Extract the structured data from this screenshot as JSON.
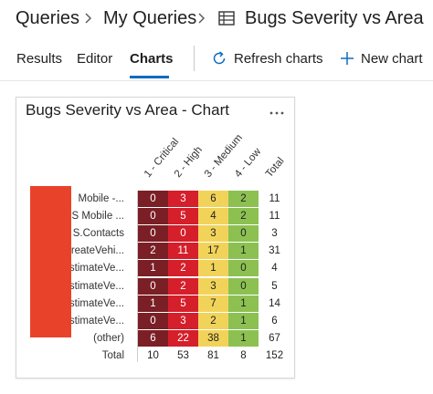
{
  "breadcrumb": {
    "root": "Queries",
    "folder": "My Queries",
    "query": "Bugs Severity vs Area"
  },
  "tabs": [
    {
      "label": "Results",
      "active": false
    },
    {
      "label": "Editor",
      "active": false
    },
    {
      "label": "Charts",
      "active": true
    }
  ],
  "commands": {
    "refresh": "Refresh charts",
    "new_chart": "New chart"
  },
  "colors": {
    "accent": "#0f6cbd",
    "critical": "#7a1f25",
    "high": "#d51f2a",
    "medium": "#f2d35a",
    "low": "#8cc152",
    "redaction": "#e8432a"
  },
  "card": {
    "title": "Bugs Severity vs Area - Chart",
    "more_icon": "ellipsis-icon"
  },
  "pivot": {
    "columns": [
      "1 - Critical",
      "2 - High",
      "3 - Medium",
      "4 - Low",
      "Total"
    ],
    "rows": [
      {
        "label": "Mobile -...",
        "values": [
          "0",
          "3",
          "6",
          "2",
          "11"
        ]
      },
      {
        "label": "S Mobile ...",
        "values": [
          "0",
          "5",
          "4",
          "2",
          "11"
        ]
      },
      {
        "label": "S.Contacts",
        "values": [
          "0",
          "0",
          "3",
          "0",
          "3"
        ]
      },
      {
        "label": "reateVehi...",
        "values": [
          "2",
          "11",
          "17",
          "1",
          "31"
        ]
      },
      {
        "label": "stimateVe...",
        "values": [
          "1",
          "2",
          "1",
          "0",
          "4"
        ]
      },
      {
        "label": "stimateVe...",
        "values": [
          "0",
          "2",
          "3",
          "0",
          "5"
        ]
      },
      {
        "label": "stimateVe...",
        "values": [
          "1",
          "5",
          "7",
          "1",
          "14"
        ]
      },
      {
        "label": "stimateVe...",
        "values": [
          "0",
          "3",
          "2",
          "1",
          "6"
        ]
      },
      {
        "label": "(other)",
        "values": [
          "6",
          "22",
          "38",
          "1",
          "67"
        ]
      }
    ],
    "totals": {
      "label": "Total",
      "values": [
        "10",
        "53",
        "81",
        "8",
        "152"
      ]
    }
  }
}
